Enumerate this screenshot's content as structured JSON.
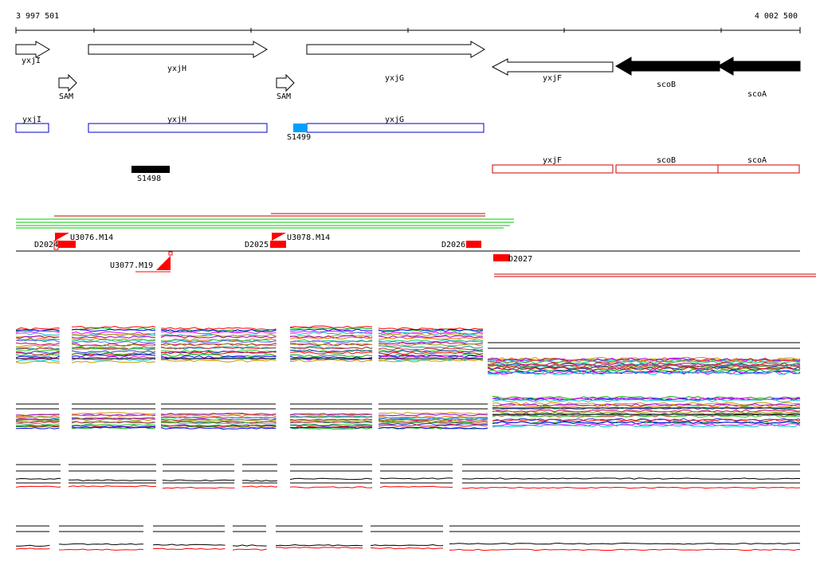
{
  "coords": {
    "start": "3 997 501",
    "end": "4 002 500"
  },
  "genes": [
    {
      "label": "yxjI",
      "strand": "+",
      "style": "outline"
    },
    {
      "label": "yxjH",
      "strand": "+",
      "style": "outline"
    },
    {
      "label": "yxjG",
      "strand": "+",
      "style": "outline"
    },
    {
      "label": "yxjF",
      "strand": "-",
      "style": "outline"
    },
    {
      "label": "scoB",
      "strand": "-",
      "style": "filled"
    },
    {
      "label": "scoA",
      "strand": "-",
      "style": "filled"
    }
  ],
  "sam_markers": [
    {
      "label": "SAM"
    },
    {
      "label": "SAM"
    }
  ],
  "transcripts_plus": [
    {
      "label": "yxjI"
    },
    {
      "label": "yxjH"
    },
    {
      "label": "yxjG"
    }
  ],
  "transcripts_minus": [
    {
      "label": "yxjF"
    },
    {
      "label": "scoB"
    },
    {
      "label": "scoA"
    }
  ],
  "segments": [
    {
      "label": "S1499"
    },
    {
      "label": "S1498"
    }
  ],
  "features": [
    {
      "label": "D2024"
    },
    {
      "label": "U3076.M14"
    },
    {
      "label": "D2025"
    },
    {
      "label": "U3078.M14"
    },
    {
      "label": "D2026"
    },
    {
      "label": "U3077.M19"
    },
    {
      "label": "D2027"
    }
  ],
  "colors": {
    "plus_track": "#0000cc",
    "minus_track": "#cc0000",
    "feature_red": "#ff0000",
    "segment_blue": "#00a0ff",
    "read_green": "#00cc00"
  }
}
